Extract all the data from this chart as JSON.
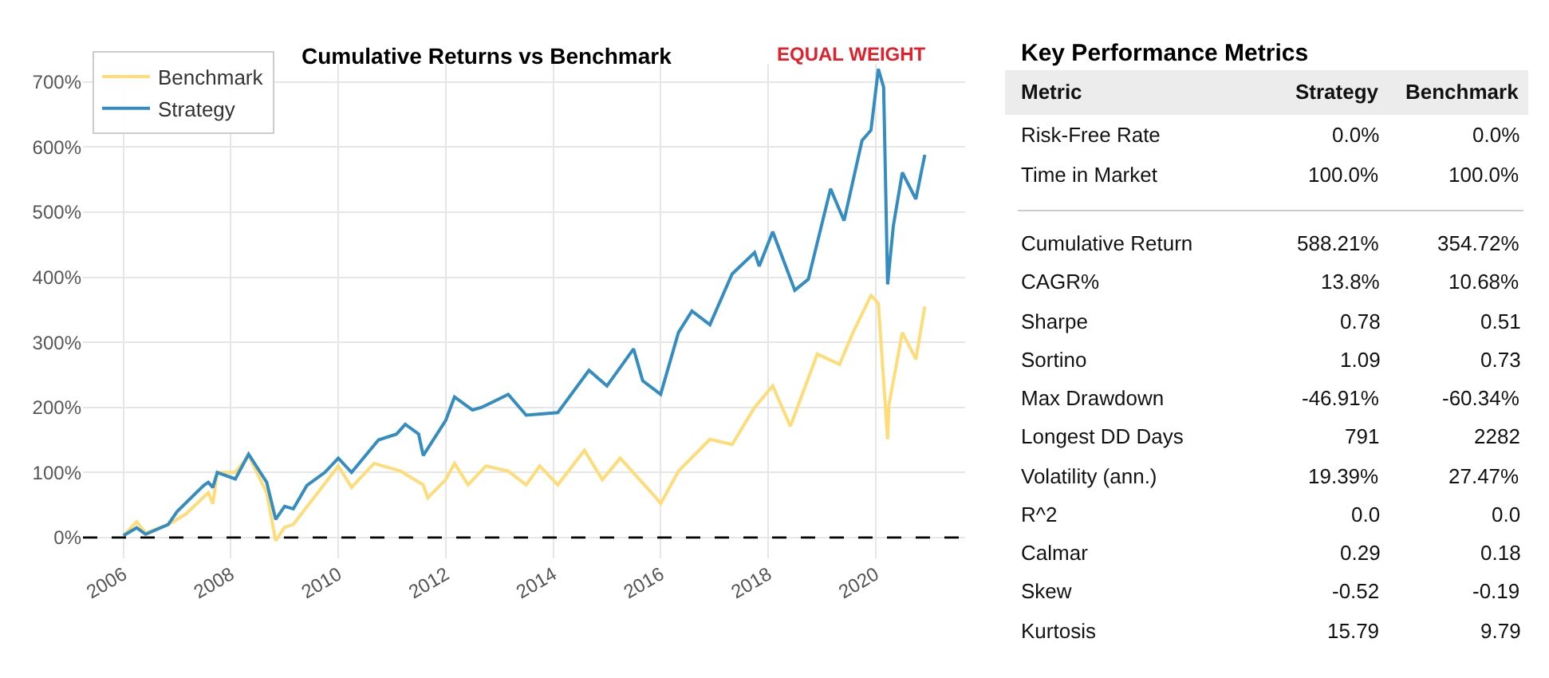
{
  "chart_data": [
    {
      "type": "line",
      "title": "Cumulative Returns vs Benchmark",
      "annotations": [
        "EQUAL WEIGHT"
      ],
      "xlim": [
        "2005-04",
        "2021-09"
      ],
      "xticks": [
        "2006",
        "2008",
        "2010",
        "2012",
        "2014",
        "2016",
        "2018",
        "2020"
      ],
      "ylim": [
        -32,
        728
      ],
      "yticks": [
        {
          "value": 0,
          "label": "0%"
        },
        {
          "value": 100,
          "label": "100%"
        },
        {
          "value": 200,
          "label": "200%"
        },
        {
          "value": 300,
          "label": "300%"
        },
        {
          "value": 400,
          "label": "400%"
        },
        {
          "value": 500,
          "label": "500%"
        },
        {
          "value": 600,
          "label": "600%"
        },
        {
          "value": 700,
          "label": "700%"
        }
      ],
      "grid": true,
      "legend": "top left",
      "line_style": "solid",
      "marker": "none",
      "ref_lines": [
        {
          "axis": "y",
          "value": 0,
          "color": "#000000",
          "line_style": "dashed"
        }
      ],
      "series": [
        {
          "name": "Benchmark",
          "color": "#fedd78",
          "x": [
            "2006-01",
            "2006-04",
            "2006-06",
            "2006-11",
            "2007-03",
            "2007-08",
            "2007-09",
            "2007-10",
            "2008-02",
            "2008-05",
            "2008-09",
            "2008-11",
            "2009-01",
            "2009-03",
            "2009-08",
            "2010-01",
            "2010-04",
            "2010-09",
            "2011-03",
            "2011-08",
            "2011-09",
            "2012-01",
            "2012-03",
            "2012-06",
            "2012-10",
            "2013-03",
            "2013-07",
            "2013-10",
            "2014-02",
            "2014-08",
            "2014-12",
            "2015-04",
            "2015-12",
            "2016-01",
            "2016-05",
            "2016-12",
            "2017-05",
            "2017-10",
            "2018-02",
            "2018-06",
            "2018-12",
            "2019-05",
            "2019-08",
            "2019-12",
            "2020-01-20",
            "2020-03-23",
            "2020-04",
            "2020-07",
            "2020-10",
            "2020-12"
          ],
          "values": [
            3,
            24,
            7,
            20,
            36,
            69,
            52,
            100,
            100,
            126,
            69,
            -5,
            16,
            20,
            65,
            110,
            77,
            114,
            102,
            81,
            61,
            89,
            114,
            81,
            110,
            102,
            81,
            110,
            81,
            134,
            89,
            122,
            61,
            52,
            102,
            151,
            143,
            200,
            233,
            171,
            282,
            266,
            315,
            372,
            360,
            151,
            204,
            315,
            274,
            355
          ]
        },
        {
          "name": "Strategy",
          "color": "#348dc1",
          "x": [
            "2006-01",
            "2006-04",
            "2006-06",
            "2006-11",
            "2007-01",
            "2007-07",
            "2007-08",
            "2007-09",
            "2007-10",
            "2008-02",
            "2008-05",
            "2008-09",
            "2008-11",
            "2009-01",
            "2009-03",
            "2009-06",
            "2009-10",
            "2010-01",
            "2010-04",
            "2010-10",
            "2011-02",
            "2011-04",
            "2011-07",
            "2011-08",
            "2012-01",
            "2012-03",
            "2012-07",
            "2012-09",
            "2013-03",
            "2013-07",
            "2014-02",
            "2014-09",
            "2015-01",
            "2015-07",
            "2015-09",
            "2016-01",
            "2016-05",
            "2016-08",
            "2016-12",
            "2017-05",
            "2017-10",
            "2017-11",
            "2018-02",
            "2018-07",
            "2018-10",
            "2019-03",
            "2019-06",
            "2019-10",
            "2019-12",
            "2020-01-20",
            "2020-02-25",
            "2020-03-23",
            "2020-05",
            "2020-07",
            "2020-10",
            "2020-12"
          ],
          "values": [
            3,
            15,
            5,
            20,
            40,
            80,
            85,
            77,
            100,
            90,
            128,
            85,
            28,
            48,
            44,
            80,
            100,
            122,
            100,
            150,
            159,
            174,
            159,
            126,
            180,
            216,
            196,
            200,
            220,
            188,
            192,
            257,
            233,
            290,
            241,
            220,
            315,
            348,
            327,
            405,
            438,
            417,
            470,
            380,
            397,
            536,
            487,
            610,
            626,
            720,
            692,
            389,
            479,
            561,
            520,
            588
          ]
        }
      ]
    },
    {
      "type": "other",
      "title": "Key Performance Metrics",
      "annotations": [
        "Metric",
        "Strategy",
        "Benchmark",
        "Risk-Free Rate",
        "0.0%",
        "0.0%",
        "Time in Market",
        "100.0%",
        "100.0%",
        "Cumulative Return",
        "588.21%",
        "354.72%",
        "CAGR%",
        "13.8%",
        "10.68%",
        "Sharpe",
        "0.78",
        "0.51",
        "Sortino",
        "1.09",
        "0.73",
        "Max Drawdown",
        "-46.91%",
        "-60.34%",
        "Longest DD Days",
        "791",
        "2282",
        "Volatility (ann.)",
        "19.39%",
        "27.47%",
        "R^2",
        "0.0",
        "0.0",
        "Calmar",
        "0.29",
        "0.18",
        "Skew",
        "-0.52",
        "-0.19",
        "Kurtosis",
        "15.79",
        "9.79"
      ]
    }
  ]
}
